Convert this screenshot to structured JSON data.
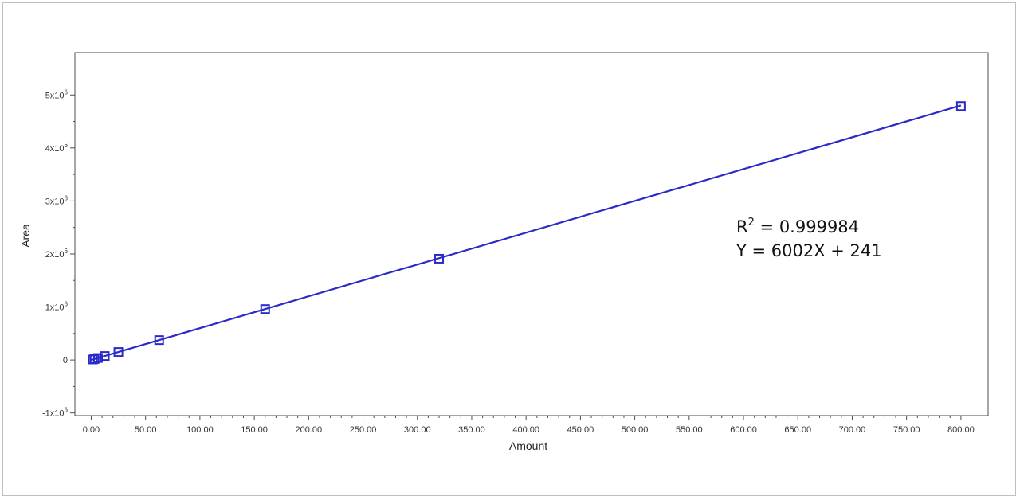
{
  "colors": {
    "series": "#2a2ac8",
    "axis": "#4d4d4d",
    "frame": "#bfbfbf"
  },
  "chart_data": {
    "type": "scatter",
    "title": "",
    "xlabel": "Amount",
    "ylabel": "Area",
    "xlim": [
      -15,
      825
    ],
    "ylim": [
      -1050000,
      5800000
    ],
    "x_ticks": [
      0,
      50,
      100,
      150,
      200,
      250,
      300,
      350,
      400,
      450,
      500,
      550,
      600,
      650,
      700,
      750,
      800
    ],
    "x_tick_labels": [
      "0.00",
      "50.00",
      "100.00",
      "150.00",
      "200.00",
      "250.00",
      "300.00",
      "350.00",
      "400.00",
      "450.00",
      "500.00",
      "550.00",
      "600.00",
      "650.00",
      "700.00",
      "750.00",
      "800.00"
    ],
    "y_ticks": [
      -1000000,
      0,
      1000000,
      2000000,
      3000000,
      4000000,
      5000000
    ],
    "y_tick_labels": [
      {
        "base": "-1x10",
        "exp": "6"
      },
      {
        "base": "0",
        "exp": ""
      },
      {
        "base": "1x10",
        "exp": "6"
      },
      {
        "base": "2x10",
        "exp": "6"
      },
      {
        "base": "3x10",
        "exp": "6"
      },
      {
        "base": "4x10",
        "exp": "6"
      },
      {
        "base": "5x10",
        "exp": "6"
      }
    ],
    "series": [
      {
        "marker": "square",
        "points": [
          {
            "x": 1.56,
            "y": 9600
          },
          {
            "x": 3.13,
            "y": 19000
          },
          {
            "x": 6.25,
            "y": 38000
          },
          {
            "x": 12.5,
            "y": 75000
          },
          {
            "x": 25,
            "y": 150000
          },
          {
            "x": 62.5,
            "y": 375000
          },
          {
            "x": 160,
            "y": 960000
          },
          {
            "x": 320,
            "y": 1910000
          },
          {
            "x": 800,
            "y": 4790000
          }
        ]
      }
    ],
    "fit_line": {
      "slope": 6002,
      "intercept": 241,
      "x_range": [
        0,
        800
      ]
    },
    "annotation": {
      "r_base": "R",
      "r_exp": "2",
      "r_value": " = 0.999984",
      "equation": "Y = 6002X + 241"
    },
    "grid": false,
    "legend": "none"
  }
}
